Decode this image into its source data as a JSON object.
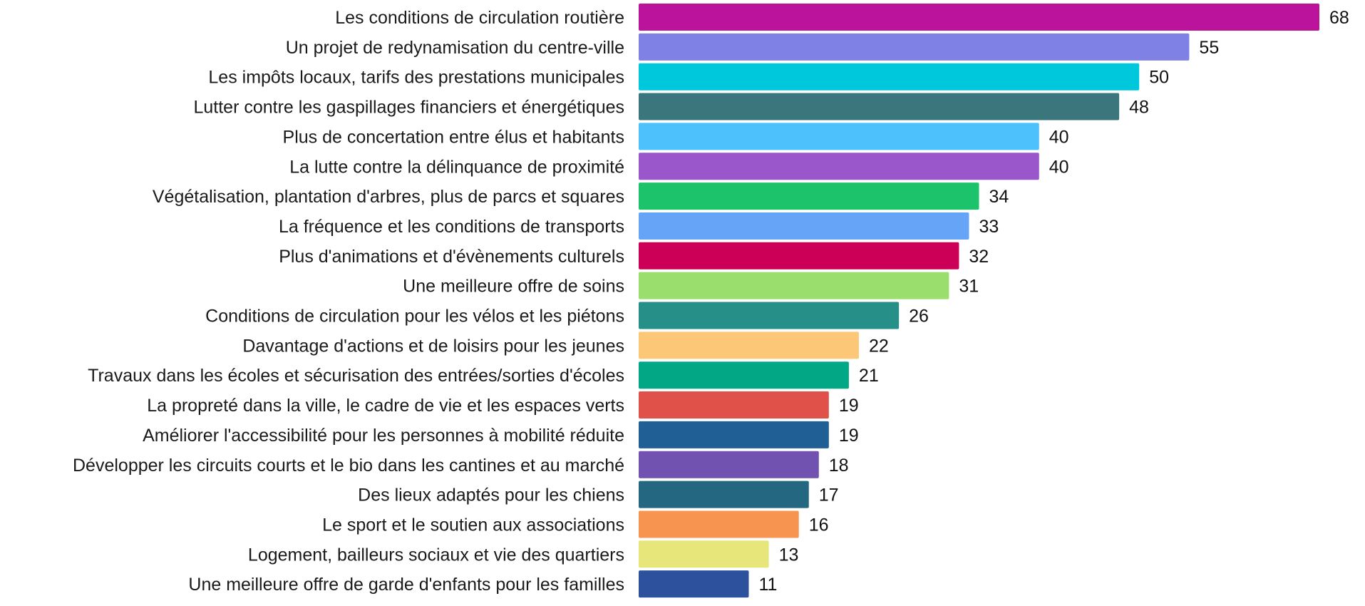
{
  "chart_data": {
    "type": "bar",
    "orientation": "horizontal",
    "title": "",
    "xlabel": "",
    "ylabel": "",
    "xlim": [
      0,
      68
    ],
    "grid": false,
    "legend": "none",
    "categories": [
      "Les conditions de circulation routière",
      "Un projet de redynamisation du centre-ville",
      "Les impôts locaux, tarifs des prestations municipales",
      "Lutter contre les gaspillages financiers et énergétiques",
      "Plus de concertation entre élus et habitants",
      "La lutte contre la délinquance de proximité",
      "Végétalisation, plantation d'arbres, plus de parcs et squares",
      "La fréquence et les conditions de transports",
      "Plus d'animations et d'évènements culturels",
      "Une meilleure offre de soins",
      "Conditions de circulation pour les vélos et les piétons",
      "Davantage d'actions et de loisirs pour les jeunes",
      "Travaux dans les écoles et sécurisation des entrées/sorties d'écoles",
      "La propreté dans la ville, le cadre de vie et les espaces verts",
      "Améliorer l'accessibilité pour les personnes à mobilité réduite",
      "Développer les circuits courts et le bio dans les cantines et au marché",
      "Des lieux adaptés pour les chiens",
      "Le sport et le soutien aux associations",
      "Logement, bailleurs sociaux et vie des quartiers",
      "Une meilleure offre de garde d'enfants pour les familles"
    ],
    "values": [
      68,
      55,
      50,
      48,
      40,
      40,
      34,
      33,
      32,
      31,
      26,
      22,
      21,
      19,
      19,
      18,
      17,
      16,
      13,
      11
    ],
    "value_labels": [
      "68",
      "55",
      "50",
      "48",
      "40",
      "40",
      "34",
      "33",
      "32",
      "31",
      "26",
      "22",
      "21",
      "19",
      "19",
      "18",
      "17",
      "16",
      "13",
      "11"
    ],
    "colors": [
      "#bb139c",
      "#7f81e4",
      "#00c8dc",
      "#3b767c",
      "#4cc1fc",
      "#9a57cb",
      "#1dc36b",
      "#66a4f8",
      "#cd0058",
      "#9adf6e",
      "#268f87",
      "#fcc877",
      "#02a886",
      "#e0514a",
      "#1f5f95",
      "#7152b0",
      "#246780",
      "#f7944f",
      "#e6e67a",
      "#2e519e"
    ]
  }
}
